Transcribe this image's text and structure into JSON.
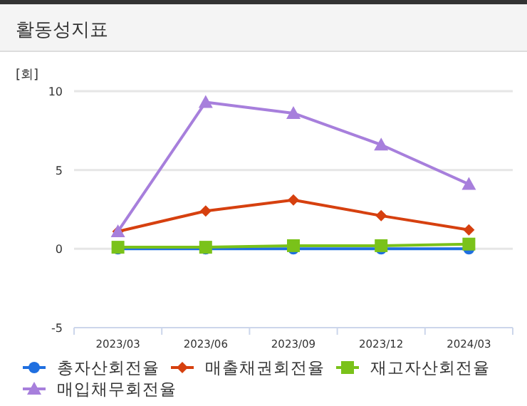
{
  "chart_data": {
    "type": "line",
    "title": "활동성지표",
    "ylabel": "[회]",
    "categories": [
      "2023/03",
      "2023/06",
      "2023/09",
      "2023/12",
      "2024/03"
    ],
    "ylim": [
      -5,
      10
    ],
    "yticks": [
      -5,
      0,
      5,
      10
    ],
    "grid": "y",
    "legend": "bottom",
    "series": [
      {
        "name": "총자산회전율",
        "color": "#1f6fe0",
        "marker": "circle",
        "values": [
          0,
          0,
          0,
          0,
          0
        ]
      },
      {
        "name": "매출채권회전율",
        "color": "#d6400f",
        "marker": "diamond",
        "values": [
          1.1,
          2.4,
          3.1,
          2.1,
          1.2
        ]
      },
      {
        "name": "재고자산회전율",
        "color": "#7ac21a",
        "marker": "square",
        "values": [
          0.1,
          0.1,
          0.2,
          0.2,
          0.3
        ]
      },
      {
        "name": "매입채무회전율",
        "color": "#a77fdc",
        "marker": "triangle",
        "values": [
          1.1,
          9.3,
          8.6,
          6.6,
          4.1
        ]
      }
    ]
  }
}
